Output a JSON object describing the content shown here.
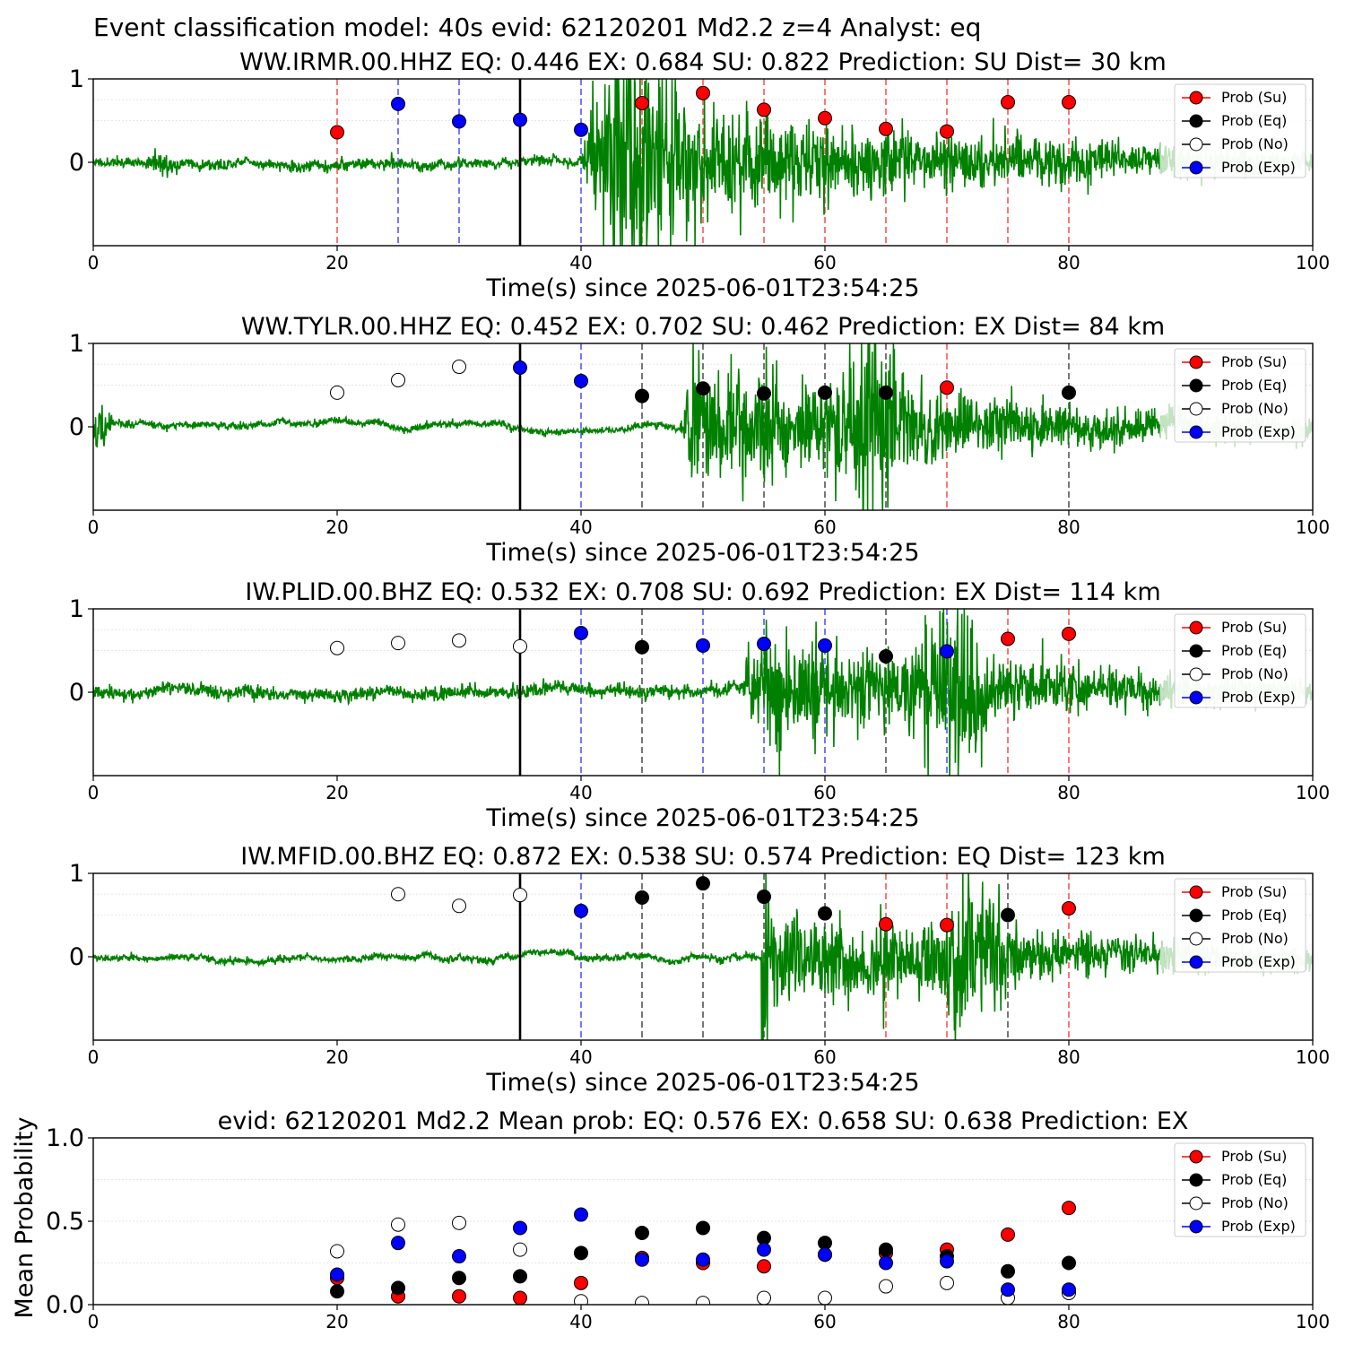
{
  "figure": {
    "suptitle": "Event classification model: 40s evid: 62120201 Md2.2 z=4 Analyst: eq"
  },
  "legend": {
    "entries": [
      {
        "label": "Prob (Su)",
        "color": "#ff0000",
        "fill": "#ff0000"
      },
      {
        "label": "Prob (Eq)",
        "color": "#000000",
        "fill": "#000000"
      },
      {
        "label": "Prob (No)",
        "color": "#000000",
        "fill": "#ffffff"
      },
      {
        "label": "Prob (Exp)",
        "color": "#0000ff",
        "fill": "#0000ff"
      }
    ]
  },
  "colors": {
    "Su": "#ff0000",
    "Eq": "#000000",
    "No": "#ffffff",
    "Exp": "#0000ff",
    "waveform": "#008000",
    "waveform_faded": "#c3e3c3",
    "origin_line": "#000000",
    "dash_Su": "#ff5555",
    "dash_Eq": "#555555",
    "dash_Exp": "#5555ff"
  },
  "chart_data": [
    {
      "type": "scatter",
      "title": "WW.IRMR.00.HHZ   EQ: 0.446  EX: 0.684  SU: 0.822   Prediction: SU    Dist= 30 km",
      "xlabel": "Time(s) since 2025-06-01T23:54:25",
      "ylabel": "",
      "xlim": [
        0,
        100
      ],
      "ylim": [
        -1,
        1
      ],
      "xticks": [
        "0",
        "20",
        "40",
        "60",
        "80",
        "100"
      ],
      "yticks": [
        "0",
        "1"
      ],
      "origin_time": 35,
      "waveform": {
        "onset": 40,
        "peak_time": 44.5,
        "duration": 28,
        "noise": 0.03,
        "signal": 0.45,
        "seed": 11,
        "pre_burst": [
          5.5,
          0.12
        ]
      },
      "points": [
        {
          "x": 20,
          "y": 0.36,
          "cls": "Su",
          "dashed": true
        },
        {
          "x": 25,
          "y": 0.7,
          "cls": "Exp",
          "dashed": true
        },
        {
          "x": 30,
          "y": 0.49,
          "cls": "Exp",
          "dashed": true
        },
        {
          "x": 35,
          "y": 0.51,
          "cls": "Exp",
          "dashed": false
        },
        {
          "x": 40,
          "y": 0.39,
          "cls": "Exp",
          "dashed": true
        },
        {
          "x": 45,
          "y": 0.71,
          "cls": "Su",
          "dashed": true
        },
        {
          "x": 50,
          "y": 0.83,
          "cls": "Su",
          "dashed": true
        },
        {
          "x": 55,
          "y": 0.63,
          "cls": "Su",
          "dashed": true
        },
        {
          "x": 60,
          "y": 0.53,
          "cls": "Su",
          "dashed": true
        },
        {
          "x": 65,
          "y": 0.4,
          "cls": "Su",
          "dashed": true
        },
        {
          "x": 70,
          "y": 0.37,
          "cls": "Su",
          "dashed": true
        },
        {
          "x": 75,
          "y": 0.72,
          "cls": "Su",
          "dashed": true
        },
        {
          "x": 80,
          "y": 0.72,
          "cls": "Su",
          "dashed": true
        }
      ]
    },
    {
      "type": "scatter",
      "title": "WW.TYLR.00.HHZ   EQ: 0.452  EX: 0.702  SU: 0.462   Prediction: EX    Dist= 84 km",
      "xlabel": "Time(s) since 2025-06-01T23:54:25",
      "ylabel": "",
      "xlim": [
        0,
        100
      ],
      "ylim": [
        -1,
        1
      ],
      "xticks": [
        "0",
        "20",
        "40",
        "60",
        "80",
        "100"
      ],
      "yticks": [
        "0",
        "1"
      ],
      "origin_time": 35,
      "waveform": {
        "onset": 48,
        "peak_time": 64,
        "duration": 30,
        "noise": 0.02,
        "signal": 0.35,
        "seed": 23,
        "pre_burst": [
          0.5,
          0.14
        ]
      },
      "points": [
        {
          "x": 20,
          "y": 0.41,
          "cls": "No",
          "dashed": false
        },
        {
          "x": 25,
          "y": 0.56,
          "cls": "No",
          "dashed": false
        },
        {
          "x": 30,
          "y": 0.72,
          "cls": "No",
          "dashed": false
        },
        {
          "x": 35,
          "y": 0.71,
          "cls": "Exp",
          "dashed": false
        },
        {
          "x": 40,
          "y": 0.55,
          "cls": "Exp",
          "dashed": true
        },
        {
          "x": 45,
          "y": 0.37,
          "cls": "Eq",
          "dashed": true
        },
        {
          "x": 50,
          "y": 0.46,
          "cls": "Eq",
          "dashed": true
        },
        {
          "x": 55,
          "y": 0.4,
          "cls": "Eq",
          "dashed": true
        },
        {
          "x": 60,
          "y": 0.41,
          "cls": "Eq",
          "dashed": true
        },
        {
          "x": 65,
          "y": 0.41,
          "cls": "Eq",
          "dashed": true
        },
        {
          "x": 70,
          "y": 0.47,
          "cls": "Su",
          "dashed": true
        },
        {
          "x": 80,
          "y": 0.41,
          "cls": "Eq",
          "dashed": true
        }
      ]
    },
    {
      "type": "scatter",
      "title": "IW.PLID.00.BHZ   EQ: 0.532  EX: 0.708  SU: 0.692   Prediction: EX    Dist= 114 km",
      "xlabel": "Time(s) since 2025-06-01T23:54:25",
      "ylabel": "",
      "xlim": [
        0,
        100
      ],
      "ylim": [
        -1,
        1
      ],
      "xticks": [
        "0",
        "20",
        "40",
        "60",
        "80",
        "100"
      ],
      "yticks": [
        "0",
        "1"
      ],
      "origin_time": 35,
      "waveform": {
        "onset": 53,
        "peak_time": 70.5,
        "duration": 26,
        "noise": 0.04,
        "signal": 0.32,
        "seed": 37,
        "pre_burst": [
          0,
          0
        ]
      },
      "points": [
        {
          "x": 20,
          "y": 0.53,
          "cls": "No",
          "dashed": false
        },
        {
          "x": 25,
          "y": 0.59,
          "cls": "No",
          "dashed": false
        },
        {
          "x": 30,
          "y": 0.62,
          "cls": "No",
          "dashed": false
        },
        {
          "x": 35,
          "y": 0.55,
          "cls": "No",
          "dashed": false
        },
        {
          "x": 40,
          "y": 0.71,
          "cls": "Exp",
          "dashed": true
        },
        {
          "x": 45,
          "y": 0.54,
          "cls": "Eq",
          "dashed": true
        },
        {
          "x": 50,
          "y": 0.56,
          "cls": "Exp",
          "dashed": true
        },
        {
          "x": 55,
          "y": 0.58,
          "cls": "Exp",
          "dashed": true
        },
        {
          "x": 60,
          "y": 0.56,
          "cls": "Exp",
          "dashed": true
        },
        {
          "x": 65,
          "y": 0.43,
          "cls": "Eq",
          "dashed": true
        },
        {
          "x": 70,
          "y": 0.49,
          "cls": "Exp",
          "dashed": true
        },
        {
          "x": 75,
          "y": 0.64,
          "cls": "Su",
          "dashed": true
        },
        {
          "x": 80,
          "y": 0.7,
          "cls": "Su",
          "dashed": true
        }
      ]
    },
    {
      "type": "scatter",
      "title": "IW.MFID.00.BHZ   EQ: 0.872  EX: 0.538  SU: 0.574   Prediction: EQ    Dist= 123 km",
      "xlabel": "Time(s) since 2025-06-01T23:54:25",
      "ylabel": "",
      "xlim": [
        0,
        100
      ],
      "ylim": [
        -1,
        1
      ],
      "xticks": [
        "0",
        "20",
        "40",
        "60",
        "80",
        "100"
      ],
      "yticks": [
        "0",
        "1"
      ],
      "origin_time": 35,
      "waveform": {
        "onset": 54.8,
        "peak_time": 72,
        "duration": 30,
        "noise": 0.02,
        "signal": 0.28,
        "seed": 53,
        "pre_burst": [
          0,
          0
        ],
        "first_spike": 0.7
      },
      "points": [
        {
          "x": 25,
          "y": 0.75,
          "cls": "No",
          "dashed": false
        },
        {
          "x": 30,
          "y": 0.61,
          "cls": "No",
          "dashed": false
        },
        {
          "x": 35,
          "y": 0.74,
          "cls": "No",
          "dashed": false
        },
        {
          "x": 40,
          "y": 0.55,
          "cls": "Exp",
          "dashed": true
        },
        {
          "x": 45,
          "y": 0.71,
          "cls": "Eq",
          "dashed": true
        },
        {
          "x": 50,
          "y": 0.88,
          "cls": "Eq",
          "dashed": true
        },
        {
          "x": 55,
          "y": 0.72,
          "cls": "Eq",
          "dashed": true
        },
        {
          "x": 60,
          "y": 0.52,
          "cls": "Eq",
          "dashed": true
        },
        {
          "x": 65,
          "y": 0.39,
          "cls": "Su",
          "dashed": true
        },
        {
          "x": 70,
          "y": 0.38,
          "cls": "Su",
          "dashed": true
        },
        {
          "x": 75,
          "y": 0.5,
          "cls": "Eq",
          "dashed": true
        },
        {
          "x": 80,
          "y": 0.58,
          "cls": "Su",
          "dashed": true
        }
      ]
    },
    {
      "type": "scatter",
      "title": "evid: 62120201  Md2.2   Mean prob:   EQ: 0.576  EX: 0.658  SU: 0.638   Prediction: EX",
      "xlabel": "",
      "ylabel": "Mean Probability",
      "xlim": [
        0,
        100
      ],
      "ylim": [
        0,
        1
      ],
      "xticks": [
        "0",
        "20",
        "40",
        "60",
        "80",
        "100"
      ],
      "yticks": [
        "0.0",
        "0.5",
        "1.0"
      ],
      "series": [
        {
          "name": "Prob (Su)",
          "cls": "Su",
          "x": [
            20,
            25,
            30,
            35,
            40,
            45,
            50,
            55,
            60,
            65,
            70,
            75,
            80
          ],
          "y": [
            0.16,
            0.05,
            0.05,
            0.04,
            0.13,
            0.28,
            0.25,
            0.23,
            0.3,
            0.31,
            0.33,
            0.42,
            0.58
          ]
        },
        {
          "name": "Prob (Eq)",
          "cls": "Eq",
          "x": [
            20,
            25,
            30,
            35,
            40,
            45,
            50,
            55,
            60,
            65,
            70,
            75,
            80
          ],
          "y": [
            0.08,
            0.1,
            0.16,
            0.17,
            0.31,
            0.43,
            0.46,
            0.4,
            0.37,
            0.33,
            0.29,
            0.2,
            0.25
          ]
        },
        {
          "name": "Prob (No)",
          "cls": "No",
          "x": [
            20,
            25,
            30,
            35,
            40,
            45,
            50,
            55,
            60,
            65,
            70,
            75,
            80
          ],
          "y": [
            0.32,
            0.48,
            0.49,
            0.33,
            0.02,
            0.01,
            0.01,
            0.04,
            0.04,
            0.11,
            0.13,
            0.04,
            0.07
          ]
        },
        {
          "name": "Prob (Exp)",
          "cls": "Exp",
          "x": [
            20,
            25,
            30,
            35,
            40,
            45,
            50,
            55,
            60,
            65,
            70,
            75,
            80
          ],
          "y": [
            0.18,
            0.37,
            0.29,
            0.46,
            0.54,
            0.27,
            0.27,
            0.33,
            0.3,
            0.25,
            0.26,
            0.09,
            0.09
          ]
        }
      ]
    }
  ]
}
